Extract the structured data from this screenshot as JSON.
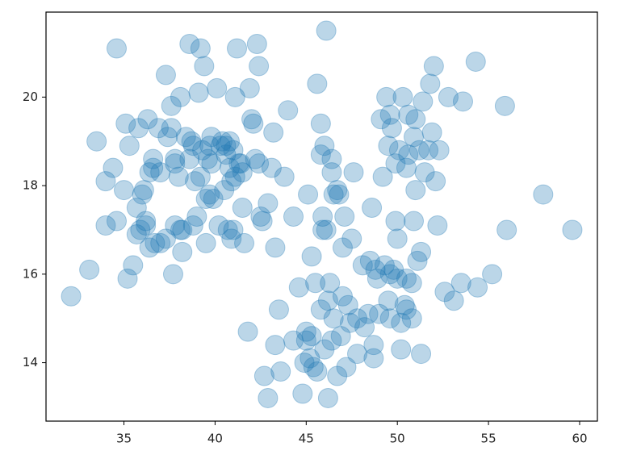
{
  "chart_data": {
    "type": "scatter",
    "color": "#1f77b4",
    "xlim": [
      30.725,
      60.975
    ],
    "ylim": [
      12.68,
      21.92
    ],
    "xticks": [
      35,
      40,
      45,
      50,
      55,
      60
    ],
    "yticks": [
      14,
      16,
      18,
      20
    ],
    "x": [
      32.1,
      33.1,
      33.5,
      34.6,
      34.0,
      34.0,
      34.4,
      34.6,
      35.1,
      35.2,
      35.3,
      35.5,
      35.7,
      35.8,
      36.1,
      36.2,
      36.3,
      36.4,
      36.6,
      36.9,
      37.0,
      37.3,
      37.4,
      37.6,
      37.7,
      37.8,
      38.0,
      38.1,
      38.2,
      38.4,
      38.6,
      38.8,
      38.9,
      39.1,
      39.2,
      39.3,
      39.4,
      39.5,
      39.7,
      39.8,
      40.1,
      40.2,
      40.4,
      40.6,
      40.9,
      40.9,
      41.1,
      41.2,
      41.3,
      41.5,
      41.6,
      41.8,
      41.9,
      42.1,
      42.3,
      42.4,
      42.4,
      42.6,
      42.7,
      42.9,
      42.9,
      43.2,
      43.3,
      43.3,
      43.5,
      43.8,
      44.0,
      44.3,
      44.6,
      44.8,
      45.0,
      45.1,
      45.3,
      45.5,
      45.6,
      45.8,
      45.9,
      46.1,
      46.2,
      46.3,
      46.4,
      46.7,
      46.8,
      47.0,
      47.1,
      47.3,
      47.5,
      47.6,
      47.8,
      48.1,
      48.4,
      48.6,
      48.7,
      48.9,
      49.1,
      49.2,
      49.4,
      49.5,
      49.6,
      49.9,
      50.0,
      50.2,
      50.3,
      50.4,
      50.6,
      50.8,
      50.9,
      51.0,
      51.1,
      51.3,
      51.4,
      51.5,
      51.8,
      51.9,
      52.0,
      52.1,
      52.2,
      52.3,
      52.6,
      52.8,
      53.1,
      53.5,
      53.6,
      54.3,
      54.4,
      55.2,
      55.9,
      56.0,
      58.0,
      59.6,
      45.0,
      45.3,
      45.6,
      45.4,
      46.0,
      46.4,
      46.9,
      46.5,
      47.0,
      47.4,
      47.8,
      48.2,
      46.2,
      45.8,
      44.9,
      45.2,
      43.6,
      44.3,
      47.2,
      48.7,
      49.0,
      49.5,
      49.8,
      50.0,
      50.5,
      49.3,
      48.8,
      50.5,
      50.2,
      48.5,
      49.6,
      50.8,
      51.3,
      46.1,
      46.5,
      46.7,
      45.9,
      46.0,
      45.8,
      46.4,
      49.6,
      50.9,
      51.2,
      50.5,
      51.0,
      50.6,
      49.9,
      50.1,
      49.7,
      51.7,
      38.8,
      39.6,
      40.6,
      41.0,
      40.8,
      41.1,
      39.0,
      39.5,
      39.9,
      38.2,
      37.8,
      37.3,
      36.7,
      36.2,
      35.9,
      35.0,
      36.0,
      37.0,
      37.8,
      38.6,
      39.2,
      39.8,
      40.3,
      40.8,
      41.4,
      42.2,
      42.0,
      43.1,
      42.5,
      41.5,
      38.7,
      37.6,
      36.6,
      35.7,
      36.4,
      38.1,
      39.7,
      40.5,
      41.0,
      40.7
    ],
    "values": [
      15.5,
      16.1,
      19.0,
      21.1,
      18.1,
      17.1,
      18.4,
      17.2,
      19.4,
      15.9,
      18.9,
      16.2,
      17.5,
      19.3,
      17.9,
      17.2,
      19.5,
      18.3,
      18.6,
      19.3,
      16.7,
      20.5,
      19.1,
      19.8,
      16.0,
      18.6,
      18.2,
      20.0,
      16.5,
      19.1,
      21.2,
      17.1,
      18.1,
      20.1,
      21.1,
      18.8,
      20.7,
      16.7,
      17.8,
      18.5,
      20.2,
      17.1,
      19.0,
      18.7,
      16.8,
      18.1,
      20.0,
      21.1,
      18.5,
      17.5,
      16.7,
      14.7,
      20.2,
      19.4,
      21.2,
      18.5,
      20.7,
      17.2,
      13.7,
      13.2,
      17.6,
      19.2,
      16.6,
      14.4,
      15.2,
      18.2,
      19.7,
      17.3,
      15.7,
      13.3,
      14.7,
      17.8,
      16.4,
      15.8,
      20.3,
      18.7,
      17.3,
      21.5,
      13.2,
      15.8,
      18.3,
      13.7,
      17.8,
      16.6,
      17.3,
      15.3,
      16.8,
      18.3,
      14.2,
      16.2,
      15.1,
      17.5,
      14.4,
      15.9,
      19.5,
      18.2,
      20.0,
      18.9,
      16.0,
      17.2,
      16.8,
      14.3,
      20.0,
      15.3,
      18.7,
      15.0,
      17.2,
      17.9,
      16.3,
      14.2,
      19.9,
      18.3,
      20.3,
      19.2,
      20.7,
      18.1,
      17.1,
      18.8,
      15.6,
      20.0,
      15.4,
      15.8,
      19.9,
      20.8,
      15.7,
      16.0,
      19.8,
      17.0,
      17.8,
      17.0,
      14.5,
      14.6,
      13.8,
      13.9,
      14.3,
      14.5,
      14.6,
      15.0,
      15.5,
      14.9,
      15.0,
      14.8,
      15.4,
      15.2,
      14.0,
      14.1,
      13.8,
      14.5,
      13.9,
      14.1,
      15.1,
      15.4,
      16.1,
      15.9,
      15.9,
      16.2,
      16.1,
      15.2,
      14.9,
      16.3,
      15.0,
      15.8,
      16.5,
      17.0,
      17.8,
      17.9,
      17.0,
      18.9,
      19.4,
      18.6,
      19.6,
      19.1,
      18.8,
      18.4,
      19.5,
      19.6,
      18.5,
      18.8,
      19.3,
      18.8,
      18.9,
      18.6,
      18.9,
      18.8,
      19.0,
      18.2,
      17.3,
      17.7,
      17.7,
      17.0,
      17.1,
      16.8,
      16.7,
      17.1,
      17.0,
      17.9,
      17.8,
      18.3,
      18.5,
      18.6,
      18.2,
      19.1,
      18.9,
      18.4,
      18.5,
      18.6,
      19.5,
      18.4,
      17.3,
      18.3,
      19.0,
      19.3,
      18.4,
      16.9,
      16.6,
      17.0,
      18.9,
      17.9,
      17.0,
      17.0
    ]
  }
}
